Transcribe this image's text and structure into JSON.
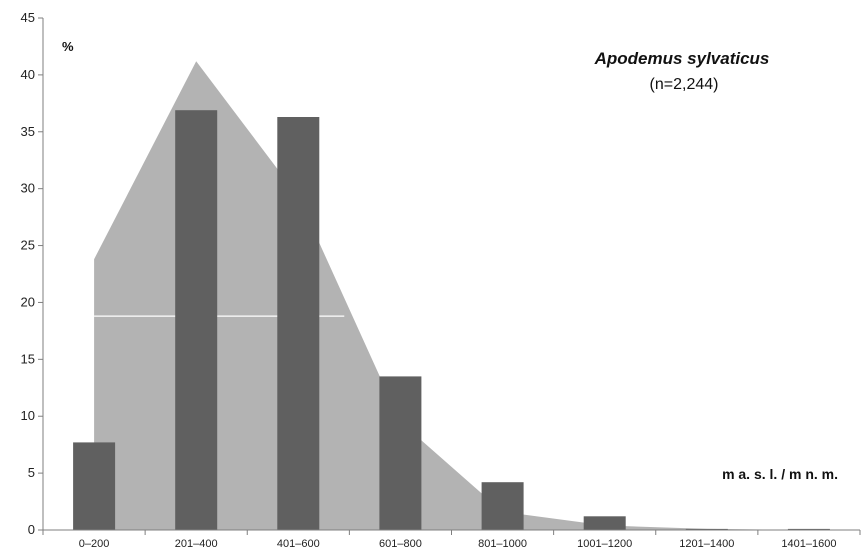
{
  "chart_data": {
    "type": "bar",
    "title": "Apodemus sylvaticus",
    "subtitle": "(n=2,244)",
    "ylabel": "%",
    "xlabel": "m a. s. l. / m n. m.",
    "ylim": [
      0,
      45
    ],
    "yticks": [
      "0",
      "5",
      "10",
      "15",
      "20",
      "25",
      "30",
      "35",
      "40",
      "45"
    ],
    "categories": [
      "0–200",
      "201–400",
      "401–600",
      "601–800",
      "801–1000",
      "1001–1200",
      "1201–1400",
      "1401–1600"
    ],
    "series": [
      {
        "type": "area",
        "values": [
          23.8,
          41.2,
          29.3,
          9.5,
          1.6,
          0.4,
          0.1,
          0.0
        ]
      },
      {
        "type": "bar",
        "values": [
          7.7,
          36.9,
          36.3,
          13.5,
          4.2,
          1.2,
          0.1,
          0.1
        ]
      }
    ],
    "reference_line": 18.8,
    "colors": {
      "area": "#b3b3b3",
      "bars": "#606060",
      "axis": "#7f7f7f"
    },
    "grid": false
  }
}
